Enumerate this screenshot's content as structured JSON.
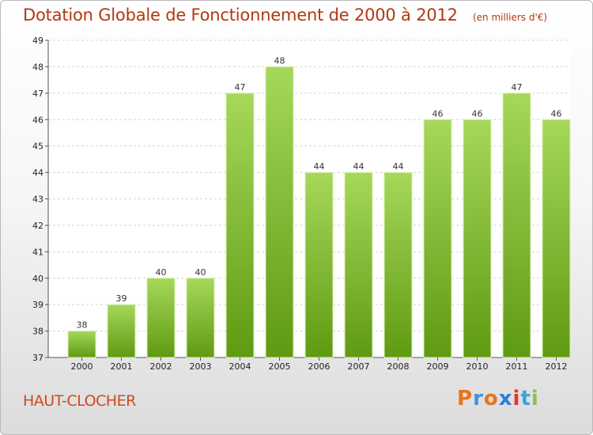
{
  "header": {
    "title": "Dotation Globale de Fonctionnement de 2000 à 2012",
    "unit": "(en milliers d'€)"
  },
  "footer": {
    "city": "HAUT-CLOCHER",
    "logo": "Proxiti"
  },
  "colors": {
    "title": "#b2380f",
    "bar_light": "#a6d85a",
    "bar_dark": "#5f9a12",
    "logo_letters": [
      "#e8731a",
      "#4a8fd8",
      "#e8731a",
      "#2b7fd6",
      "#e23a2a",
      "#3ba3e0",
      "#8bc34a"
    ]
  },
  "chart_data": {
    "type": "bar",
    "categories": [
      "2000",
      "2001",
      "2002",
      "2003",
      "2004",
      "2005",
      "2006",
      "2007",
      "2008",
      "2009",
      "2010",
      "2011",
      "2012"
    ],
    "values": [
      38,
      39,
      40,
      40,
      47,
      48,
      44,
      44,
      44,
      46,
      46,
      47,
      46
    ],
    "title": "Dotation Globale de Fonctionnement de 2000 à 2012",
    "subtitle": "(en milliers d'€)",
    "ylim": [
      37,
      49
    ],
    "yticks": [
      37,
      38,
      39,
      40,
      41,
      42,
      43,
      44,
      45,
      46,
      47,
      48,
      49
    ],
    "grid": true
  }
}
